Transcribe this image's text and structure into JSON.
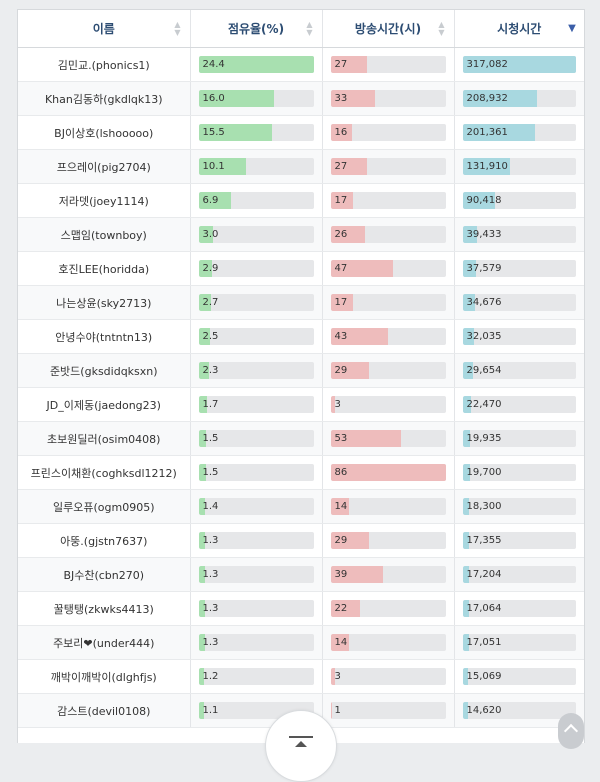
{
  "columns": {
    "name": "이름",
    "share": "점유율(%)",
    "hours": "방송시간(시)",
    "views": "시청시간"
  },
  "sort": {
    "icon": "sort-arrows-icon",
    "active_icon": "sort-desc-icon",
    "active_column": "views"
  },
  "scales": {
    "share_max": 24.4,
    "hours_max": 86,
    "views_max": 317082
  },
  "colors": {
    "share": "#a8e0b0",
    "hours": "#eebcbc",
    "views": "#a8d8e0",
    "track": "#e6e7e9"
  },
  "rows": [
    {
      "name": "김민교.(phonics1)",
      "share": "24.4",
      "hours": "27",
      "views": "317,082"
    },
    {
      "name": "Khan김동하(gkdlqk13)",
      "share": "16.0",
      "hours": "33",
      "views": "208,932"
    },
    {
      "name": "BJ이상호(lshooooo)",
      "share": "15.5",
      "hours": "16",
      "views": "201,361"
    },
    {
      "name": "프으레이(pig2704)",
      "share": "10.1",
      "hours": "27",
      "views": "131,910"
    },
    {
      "name": "저라뎃(joey1114)",
      "share": "6.9",
      "hours": "17",
      "views": "90,418"
    },
    {
      "name": "스맵임(townboy)",
      "share": "3.0",
      "hours": "26",
      "views": "39,433"
    },
    {
      "name": "호진LEE(horidda)",
      "share": "2.9",
      "hours": "47",
      "views": "37,579"
    },
    {
      "name": "나는상윤(sky2713)",
      "share": "2.7",
      "hours": "17",
      "views": "34,676"
    },
    {
      "name": "안녕수야(tntntn13)",
      "share": "2.5",
      "hours": "43",
      "views": "32,035"
    },
    {
      "name": "준밧드(gksdidqksxn)",
      "share": "2.3",
      "hours": "29",
      "views": "29,654"
    },
    {
      "name": "JD_이제동(jaedong23)",
      "share": "1.7",
      "hours": "3",
      "views": "22,470"
    },
    {
      "name": "초보원딜러(osim0408)",
      "share": "1.5",
      "hours": "53",
      "views": "19,935"
    },
    {
      "name": "프린스이채환(coghksdl1212)",
      "share": "1.5",
      "hours": "86",
      "views": "19,700"
    },
    {
      "name": "일루오퓨(ogm0905)",
      "share": "1.4",
      "hours": "14",
      "views": "18,300"
    },
    {
      "name": "아뚱.(gjstn7637)",
      "share": "1.3",
      "hours": "29",
      "views": "17,355"
    },
    {
      "name": "BJ수찬(cbn270)",
      "share": "1.3",
      "hours": "39",
      "views": "17,204"
    },
    {
      "name": "꿀탱탱(zkwks4413)",
      "share": "1.3",
      "hours": "22",
      "views": "17,064"
    },
    {
      "name": "주보리❤(under444)",
      "share": "1.3",
      "hours": "14",
      "views": "17,051"
    },
    {
      "name": "깨박이깨박이(dlghfjs)",
      "share": "1.2",
      "hours": "3",
      "views": "15,069"
    },
    {
      "name": "감스트(devil0108)",
      "share": "1.1",
      "hours": "1",
      "views": "14,620"
    }
  ],
  "controls": {
    "scroll_top_icon": "scroll-to-top-icon",
    "up_icon": "chevron-up-icon"
  }
}
